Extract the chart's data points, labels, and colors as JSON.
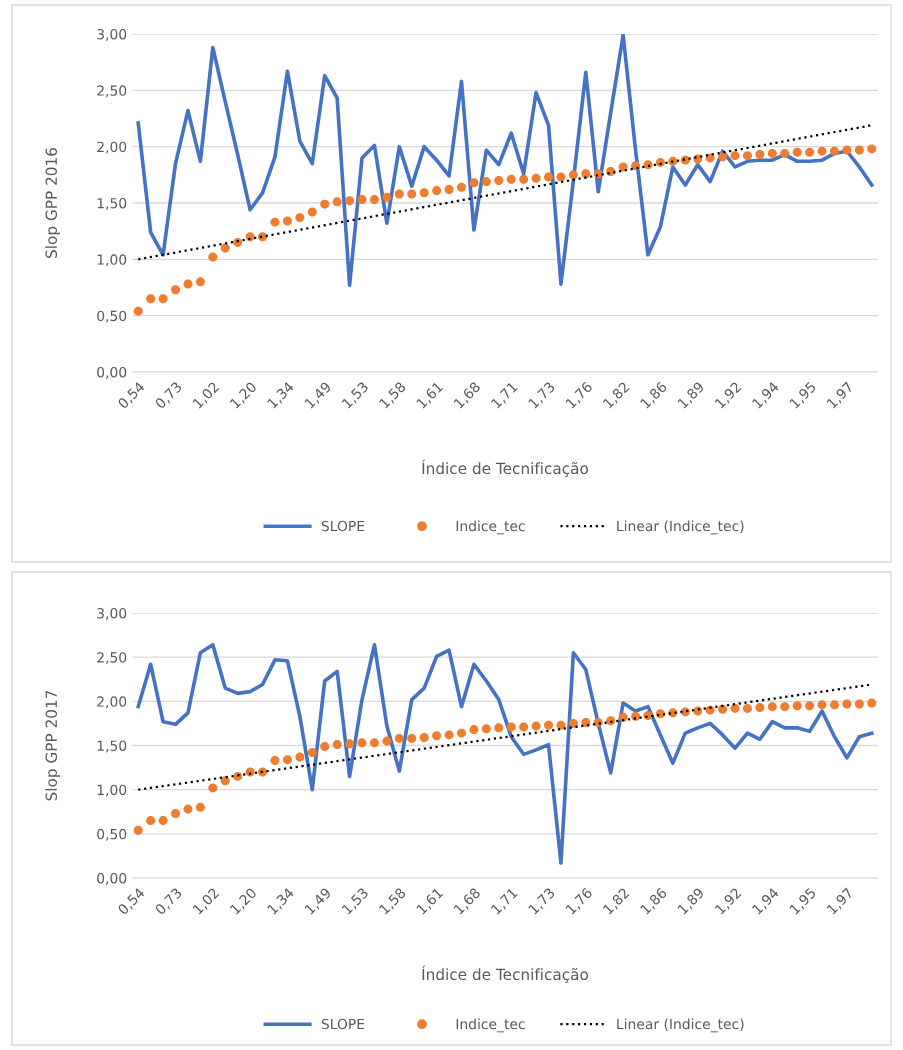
{
  "chart_data": [
    {
      "type": "line",
      "xlabel": "Índice de Tecnificação",
      "ylabel": "Slop GPP 2016",
      "categories": [
        "0,54",
        null,
        null,
        "0,73",
        null,
        null,
        "1,02",
        null,
        null,
        "1,20",
        null,
        null,
        "1,34",
        null,
        null,
        "1,49",
        null,
        null,
        "1,53",
        null,
        null,
        "1,58",
        null,
        null,
        "1,61",
        null,
        null,
        "1,68",
        null,
        null,
        "1,71",
        null,
        null,
        "1,73",
        null,
        null,
        "1,76",
        null,
        null,
        "1,82",
        null,
        null,
        "1,86",
        null,
        null,
        "1,89",
        null,
        null,
        "1,92",
        null,
        null,
        "1,94",
        null,
        null,
        "1,95",
        null,
        null,
        "1,97",
        null,
        null
      ],
      "series": [
        {
          "name": "SLOPE",
          "color": "#4472c4",
          "line_style": "solid",
          "marker": "none",
          "values": [
            2.21,
            1.24,
            1.04,
            1.85,
            2.32,
            1.87,
            2.88,
            2.4,
            1.93,
            1.44,
            1.59,
            1.91,
            2.67,
            2.05,
            1.85,
            2.63,
            2.43,
            0.77,
            1.9,
            2.01,
            1.32,
            2.0,
            1.65,
            2.0,
            1.88,
            1.74,
            2.58,
            1.26,
            1.97,
            1.84,
            2.12,
            1.76,
            2.48,
            2.19,
            0.78,
            1.7,
            2.66,
            1.6,
            2.3,
            2.99,
            1.97,
            1.04,
            1.29,
            1.82,
            1.66,
            1.84,
            1.69,
            1.96,
            1.82,
            1.87,
            1.88,
            1.88,
            1.93,
            1.87,
            1.87,
            1.88,
            1.94,
            1.96,
            1.82,
            1.66
          ]
        },
        {
          "name": "Indice_tec",
          "type": "scatter",
          "color": "#ed7d31",
          "marker": "circle",
          "values": [
            0.54,
            0.65,
            0.65,
            0.73,
            0.78,
            0.8,
            1.02,
            1.1,
            1.15,
            1.2,
            1.2,
            1.33,
            1.34,
            1.37,
            1.42,
            1.49,
            1.51,
            1.52,
            1.53,
            1.53,
            1.55,
            1.58,
            1.58,
            1.59,
            1.61,
            1.62,
            1.64,
            1.68,
            1.69,
            1.7,
            1.71,
            1.71,
            1.72,
            1.73,
            1.73,
            1.75,
            1.76,
            1.76,
            1.78,
            1.82,
            1.83,
            1.84,
            1.86,
            1.87,
            1.88,
            1.89,
            1.9,
            1.91,
            1.92,
            1.92,
            1.93,
            1.94,
            1.94,
            1.95,
            1.95,
            1.96,
            1.96,
            1.97,
            1.97,
            1.98
          ]
        },
        {
          "name": "Linear (Indice_tec)",
          "color": "#000000",
          "line_style": "dotted",
          "marker": "none",
          "values": [
            1.0,
            null,
            null,
            null,
            null,
            null,
            null,
            null,
            null,
            null,
            null,
            null,
            null,
            null,
            null,
            null,
            null,
            null,
            null,
            null,
            null,
            null,
            null,
            null,
            null,
            null,
            null,
            null,
            null,
            null,
            null,
            null,
            null,
            null,
            null,
            null,
            null,
            null,
            null,
            null,
            null,
            null,
            null,
            null,
            null,
            null,
            null,
            null,
            null,
            null,
            null,
            null,
            null,
            null,
            null,
            null,
            null,
            null,
            null,
            2.19
          ]
        }
      ],
      "ylim": [
        0,
        3
      ],
      "yticks": [
        {
          "value": 0,
          "label": "0,00"
        },
        {
          "value": 0.5,
          "label": "0,50"
        },
        {
          "value": 1,
          "label": "1,00"
        },
        {
          "value": 1.5,
          "label": "1,50"
        },
        {
          "value": 2,
          "label": "2,00"
        },
        {
          "value": 2.5,
          "label": "2,50"
        },
        {
          "value": 3,
          "label": "3,00"
        }
      ],
      "grid": "y",
      "legend": "bottom"
    },
    {
      "type": "line",
      "xlabel": "Índice de Tecnificação",
      "ylabel": "Slop GPP 2017",
      "categories": [
        "0,54",
        null,
        null,
        "0,73",
        null,
        null,
        "1,02",
        null,
        null,
        "1,20",
        null,
        null,
        "1,34",
        null,
        null,
        "1,49",
        null,
        null,
        "1,53",
        null,
        null,
        "1,58",
        null,
        null,
        "1,61",
        null,
        null,
        "1,68",
        null,
        null,
        "1,71",
        null,
        null,
        "1,73",
        null,
        null,
        "1,76",
        null,
        null,
        "1,82",
        null,
        null,
        "1,86",
        null,
        null,
        "1,89",
        null,
        null,
        "1,92",
        null,
        null,
        "1,94",
        null,
        null,
        "1,95",
        null,
        null,
        "1,97",
        null,
        null
      ],
      "series": [
        {
          "name": "SLOPE",
          "color": "#4472c4",
          "line_style": "solid",
          "marker": "none",
          "values": [
            1.94,
            2.42,
            1.77,
            1.74,
            1.87,
            2.55,
            2.64,
            2.15,
            2.09,
            2.11,
            2.19,
            2.47,
            2.46,
            1.83,
            1.0,
            2.23,
            2.34,
            1.15,
            2.02,
            2.64,
            1.72,
            1.21,
            2.02,
            2.15,
            2.51,
            2.58,
            1.94,
            2.42,
            2.23,
            2.02,
            1.6,
            1.4,
            1.45,
            1.51,
            0.17,
            2.55,
            2.36,
            1.75,
            1.19,
            1.98,
            1.89,
            1.94,
            1.62,
            1.3,
            1.64,
            1.7,
            1.75,
            1.62,
            1.47,
            1.64,
            1.57,
            1.77,
            1.7,
            1.7,
            1.66,
            1.89,
            1.6,
            1.36,
            1.6,
            1.64
          ]
        },
        {
          "name": "Indice_tec",
          "type": "scatter",
          "color": "#ed7d31",
          "marker": "circle",
          "values": [
            0.54,
            0.65,
            0.65,
            0.73,
            0.78,
            0.8,
            1.02,
            1.1,
            1.15,
            1.2,
            1.2,
            1.33,
            1.34,
            1.37,
            1.42,
            1.49,
            1.51,
            1.52,
            1.53,
            1.53,
            1.55,
            1.58,
            1.58,
            1.59,
            1.61,
            1.62,
            1.64,
            1.68,
            1.69,
            1.7,
            1.71,
            1.71,
            1.72,
            1.73,
            1.73,
            1.75,
            1.76,
            1.76,
            1.78,
            1.82,
            1.83,
            1.84,
            1.86,
            1.87,
            1.88,
            1.89,
            1.9,
            1.91,
            1.92,
            1.92,
            1.93,
            1.94,
            1.94,
            1.95,
            1.95,
            1.96,
            1.96,
            1.97,
            1.97,
            1.98
          ]
        },
        {
          "name": "Linear (Indice_tec)",
          "color": "#000000",
          "line_style": "dotted",
          "marker": "none",
          "values": [
            1.0,
            null,
            null,
            null,
            null,
            null,
            null,
            null,
            null,
            null,
            null,
            null,
            null,
            null,
            null,
            null,
            null,
            null,
            null,
            null,
            null,
            null,
            null,
            null,
            null,
            null,
            null,
            null,
            null,
            null,
            null,
            null,
            null,
            null,
            null,
            null,
            null,
            null,
            null,
            null,
            null,
            null,
            null,
            null,
            null,
            null,
            null,
            null,
            null,
            null,
            null,
            null,
            null,
            null,
            null,
            null,
            null,
            null,
            null,
            2.19
          ]
        }
      ],
      "ylim": [
        0,
        3
      ],
      "yticks": [
        {
          "value": 0,
          "label": "0,00"
        },
        {
          "value": 0.5,
          "label": "0,50"
        },
        {
          "value": 1,
          "label": "1,00"
        },
        {
          "value": 1.5,
          "label": "1,50"
        },
        {
          "value": 2,
          "label": "2,00"
        },
        {
          "value": 2.5,
          "label": "2,50"
        },
        {
          "value": 3,
          "label": "3,00"
        }
      ],
      "grid": "y",
      "legend": "bottom"
    }
  ]
}
